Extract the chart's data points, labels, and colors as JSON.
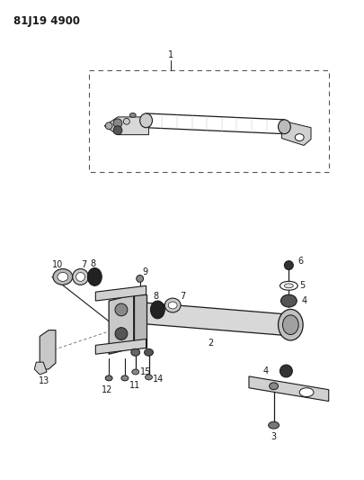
{
  "title_code": "81J19 4900",
  "bg_color": "#ffffff",
  "line_color": "#1a1a1a",
  "fig_width": 4.06,
  "fig_height": 5.33,
  "dpi": 100
}
